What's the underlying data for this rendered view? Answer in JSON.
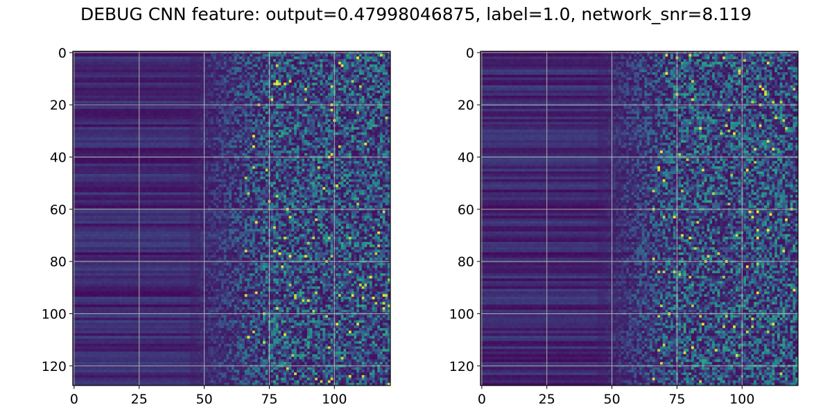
{
  "figure": {
    "title": "DEBUG CNN feature: output=0.47998046875, label=1.0, network_snr=8.119"
  },
  "chart_data": [
    {
      "type": "heatmap",
      "title": "",
      "xlabel": "",
      "ylabel": "",
      "grid": true,
      "colormap": "viridis",
      "colormap_stops": [
        "#440154",
        "#3b528b",
        "#21918c",
        "#5ec962",
        "#fde725"
      ],
      "x_extent": [
        -0.5,
        121.5
      ],
      "y_extent": [
        127.5,
        -0.5
      ],
      "shape": [
        128,
        122
      ],
      "xticks": [
        0,
        25,
        50,
        75,
        100
      ],
      "xtick_labels": [
        "0",
        "25",
        "50",
        "75",
        "100"
      ],
      "yticks": [
        0,
        20,
        40,
        60,
        80,
        100,
        120
      ],
      "ytick_labels": [
        "0",
        "20",
        "40",
        "60",
        "80",
        "100",
        "120"
      ],
      "value_pattern": "low and row-banded for columns 0–45, rising noisy values from ~50 to 121 with sparse bright pixels",
      "seed": 7
    },
    {
      "type": "heatmap",
      "title": "",
      "xlabel": "",
      "ylabel": "",
      "grid": true,
      "colormap": "viridis",
      "colormap_stops": [
        "#440154",
        "#3b528b",
        "#21918c",
        "#5ec962",
        "#fde725"
      ],
      "x_extent": [
        -0.5,
        121.5
      ],
      "y_extent": [
        127.5,
        -0.5
      ],
      "shape": [
        128,
        122
      ],
      "xticks": [
        0,
        25,
        50,
        75,
        100
      ],
      "xtick_labels": [
        "0",
        "25",
        "50",
        "75",
        "100"
      ],
      "yticks": [
        0,
        20,
        40,
        60,
        80,
        100,
        120
      ],
      "ytick_labels": [
        "0",
        "20",
        "40",
        "60",
        "80",
        "100",
        "120"
      ],
      "value_pattern": "low and row-banded for columns 0–45, rising noisy values from ~50 to 121 with sparse bright pixels",
      "seed": 23
    }
  ]
}
